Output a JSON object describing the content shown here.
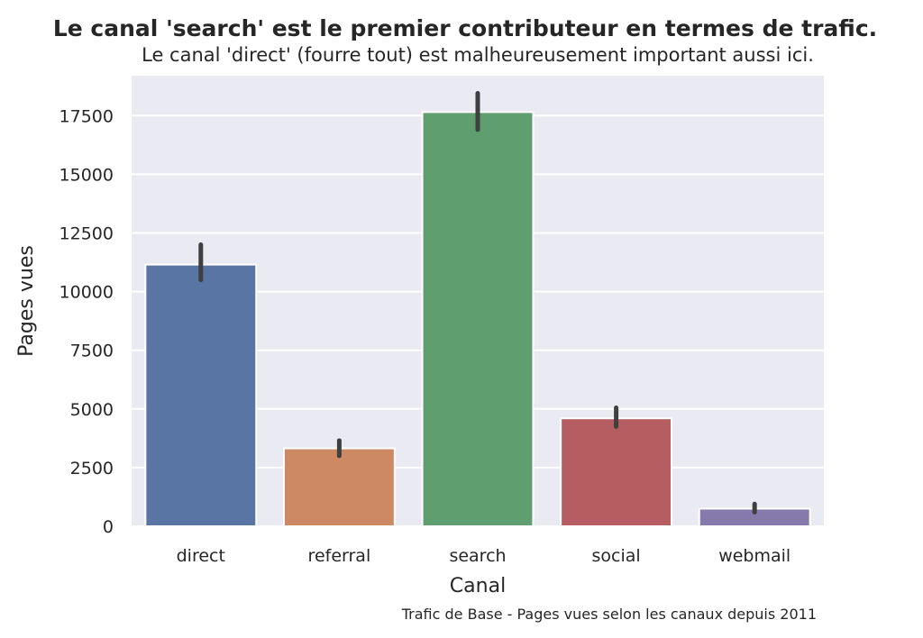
{
  "chart_data": {
    "type": "bar",
    "title": "Le canal 'search' est le premier contributeur en termes de trafic.",
    "subtitle": "Le canal 'direct' (fourre tout) est malheureusement important aussi ici.",
    "xlabel": "Canal",
    "ylabel": "Pages vues",
    "caption": "Trafic de Base - Pages vues selon les canaux depuis 2011",
    "categories": [
      "direct",
      "referral",
      "search",
      "social",
      "webmail"
    ],
    "values": [
      11150,
      3320,
      17650,
      4600,
      750
    ],
    "error_low": [
      10500,
      3000,
      16900,
      4250,
      600
    ],
    "error_high": [
      12000,
      3650,
      18450,
      5050,
      950
    ],
    "colors": [
      "#5875a4",
      "#cc8963",
      "#5f9e6e",
      "#b55d60",
      "#857aab"
    ],
    "ylim": [
      0,
      19200
    ],
    "yticks": [
      0,
      2500,
      5000,
      7500,
      10000,
      12500,
      15000,
      17500
    ],
    "ytick_labels": [
      "0",
      "2500",
      "5000",
      "7500",
      "10000",
      "12500",
      "15000",
      "17500"
    ],
    "grid": true,
    "background": "#eaeaf2",
    "errorbar_color": "#3f3f3f"
  }
}
